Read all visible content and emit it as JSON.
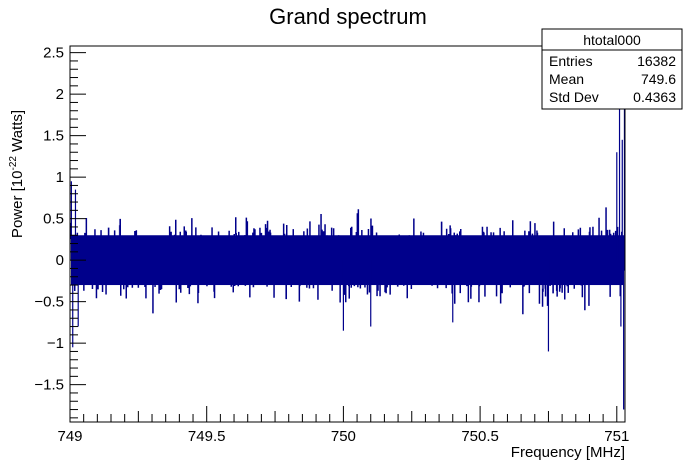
{
  "chart_data": {
    "type": "histogram",
    "title": "Grand spectrum",
    "xlabel": "Frequency [MHz]",
    "ylabel_prefix": "Power [10",
    "ylabel_exp": "-22",
    "ylabel_suffix": " Watts]",
    "xlim": [
      749,
      751.03
    ],
    "ylim": [
      -1.95,
      2.58
    ],
    "x_ticks": [
      749,
      749.5,
      750,
      750.5,
      751
    ],
    "x_tick_labels": [
      "749",
      "749.5",
      "750",
      "750.5",
      "751"
    ],
    "y_ticks": [
      -1.5,
      -1,
      -0.5,
      0,
      0.5,
      1,
      1.5,
      2,
      2.5
    ],
    "y_tick_labels": [
      "−1.5",
      "−1",
      "−0.5",
      "0",
      "0.5",
      "1",
      "1.5",
      "2",
      "2.5"
    ],
    "series": [
      {
        "color": "#00008b",
        "x_start": 749.0,
        "x_end": 751.03,
        "n_points": 16382,
        "band_typical": [
          -0.3,
          0.3
        ],
        "band_max": [
          -0.75,
          0.75
        ],
        "notable_values": [
          {
            "x": 749.005,
            "y": 0.95
          },
          {
            "x": 749.01,
            "y": -1.05
          },
          {
            "x": 749.02,
            "y": 0.85
          },
          {
            "x": 749.03,
            "y": -0.8
          },
          {
            "x": 750.0,
            "y": -0.85
          },
          {
            "x": 750.1,
            "y": -0.8
          },
          {
            "x": 750.4,
            "y": -0.75
          },
          {
            "x": 750.75,
            "y": -1.1
          },
          {
            "x": 751.0,
            "y": 1.3
          },
          {
            "x": 751.01,
            "y": 2.0
          },
          {
            "x": 751.015,
            "y": -0.8
          },
          {
            "x": 751.02,
            "y": 1.45
          },
          {
            "x": 751.025,
            "y": -1.8
          },
          {
            "x": 751.028,
            "y": 2.4
          }
        ]
      }
    ],
    "stats_box": {
      "name": "htotal000",
      "rows": [
        {
          "label": "Entries",
          "value": "16382"
        },
        {
          "label": "Mean",
          "value": "749.6"
        },
        {
          "label": "Std Dev",
          "value": "0.4363"
        }
      ]
    },
    "grid": false,
    "legend": "top-right stats box"
  }
}
